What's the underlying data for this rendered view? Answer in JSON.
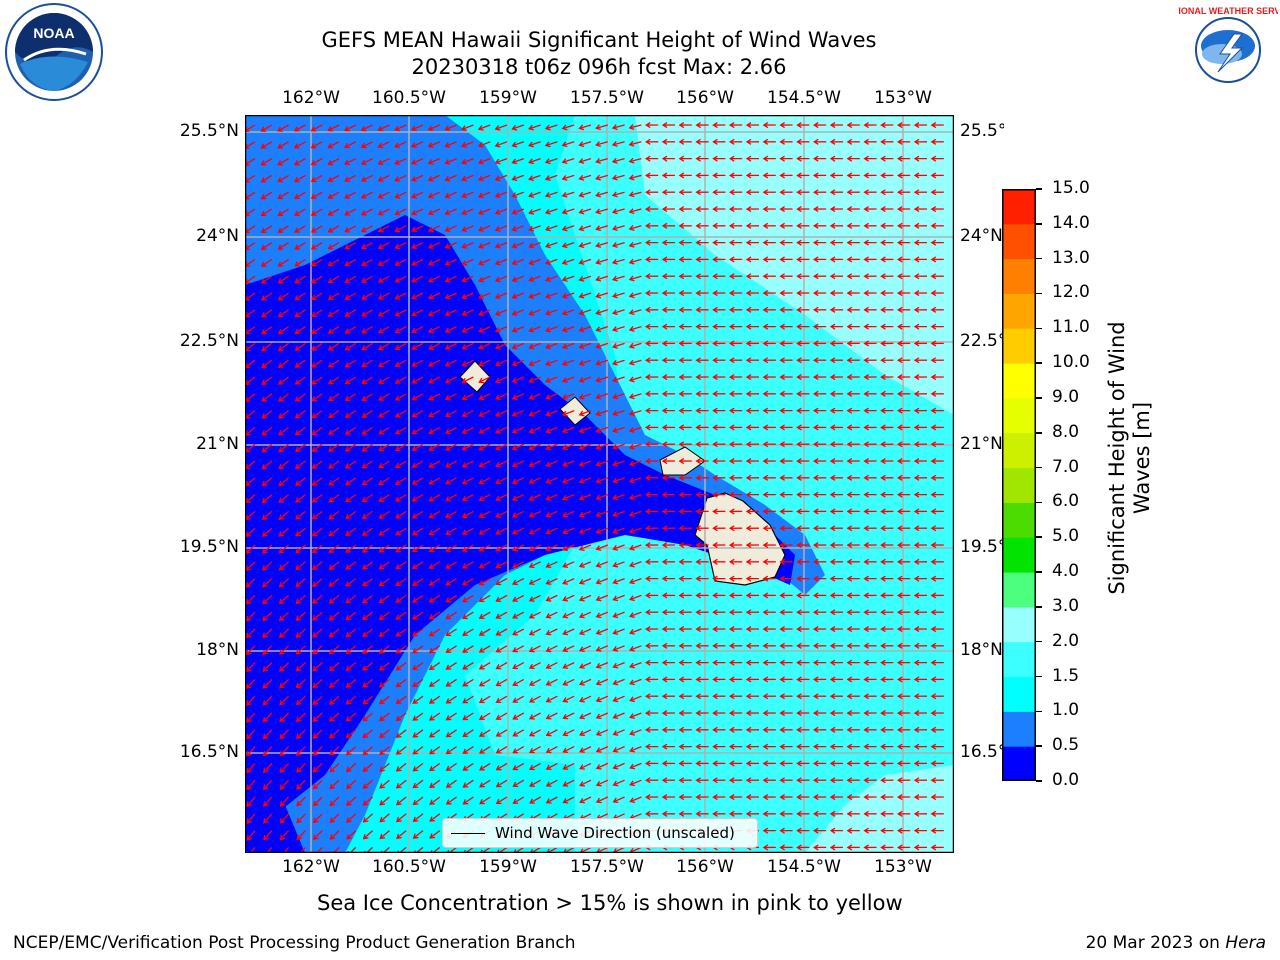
{
  "header": {
    "title_line1": "GEFS MEAN Hawaii Significant Height of Wind Waves",
    "title_line2": "20230318 t06z 096h fcst   Max: 2.66"
  },
  "map": {
    "lon_labels": [
      "162°W",
      "160.5°W",
      "159°W",
      "157.5°W",
      "156°W",
      "154.5°W",
      "153°W"
    ],
    "lat_labels": [
      "25.5°N",
      "24°N",
      "22.5°N",
      "21°N",
      "19.5°N",
      "18°N",
      "16.5°N"
    ],
    "legend_label": "Wind Wave Direction (unscaled)",
    "arrow_color": "#ff0000",
    "land_color": "#efecdc"
  },
  "colorbar": {
    "title": "Significant Height of Wind Waves [m]",
    "title_line1": "Significant Height of Wind",
    "title_line2": "Waves [m]",
    "tick_labels": [
      "0.0",
      "0.5",
      "1.0",
      "1.5",
      "2.0",
      "3.0",
      "4.0",
      "5.0",
      "6.0",
      "7.0",
      "8.0",
      "9.0",
      "10.0",
      "11.0",
      "12.0",
      "13.0",
      "14.0",
      "15.0"
    ],
    "colors": [
      "#0000ff",
      "#1c7fff",
      "#00ffff",
      "#3cffff",
      "#98ffff",
      "#4dff7e",
      "#00e400",
      "#4ddc00",
      "#a0e600",
      "#ccf000",
      "#e6ff00",
      "#ffff00",
      "#ffcc00",
      "#ffa500",
      "#ff8000",
      "#ff5000",
      "#ff2000"
    ]
  },
  "note": "Sea Ice Concentration > 15% is shown in pink to yellow",
  "footer": {
    "left": "NCEP/EMC/Verification Post Processing Product Generation Branch",
    "right_prefix": "20 Mar 2023 on ",
    "right_italic": "Hera"
  },
  "logos": {
    "noaa_text": "NOAA",
    "nws_text": "NATIONAL WEATHER SERVICE"
  }
}
